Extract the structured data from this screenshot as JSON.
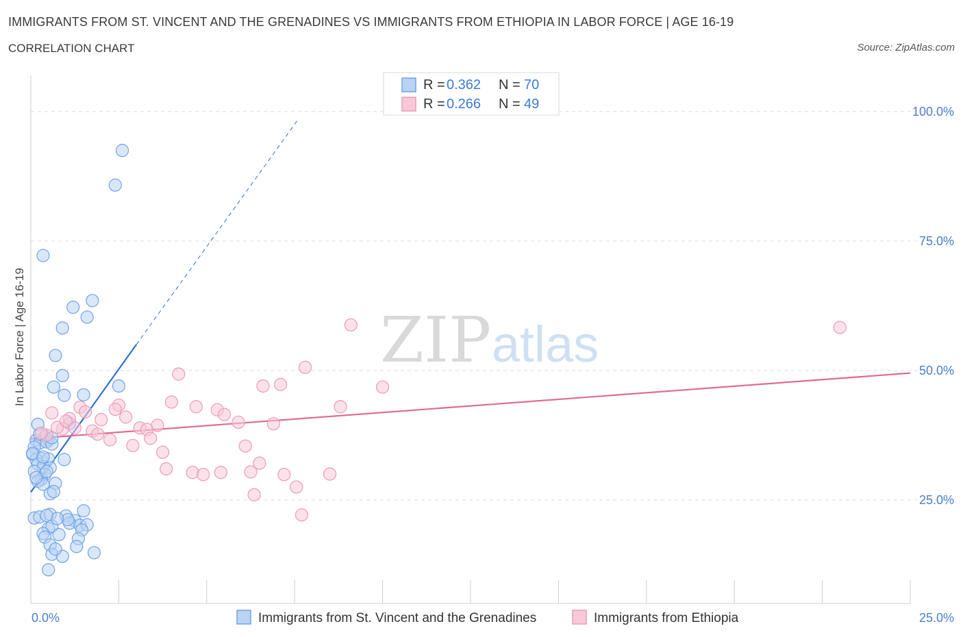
{
  "chart_data": {
    "type": "scatter",
    "title": "IMMIGRANTS FROM ST. VINCENT AND THE GRENADINES VS IMMIGRANTS FROM ETHIOPIA IN LABOR FORCE | AGE 16-19",
    "subtitle": "CORRELATION CHART",
    "source": "Source: ZipAtlas.com",
    "ylabel": "In Labor Force | Age 16-19",
    "xlabel": "",
    "xlim": [
      0,
      25
    ],
    "ylim": [
      5,
      107
    ],
    "x_tick_labels": [
      {
        "value": 0,
        "label": "0.0%"
      },
      {
        "value": 25,
        "label": "25.0%"
      }
    ],
    "y_tick_labels": [
      {
        "value": 25,
        "label": "25.0%"
      },
      {
        "value": 50,
        "label": "50.0%"
      },
      {
        "value": 75,
        "label": "75.0%"
      },
      {
        "value": 100,
        "label": "100.0%"
      }
    ],
    "grid": true,
    "legend": [
      {
        "series": "Immigrants from St. Vincent and the Grenadines",
        "r_label": "R = ",
        "r": "0.362",
        "n_label": "N = ",
        "n": "70"
      },
      {
        "series": "Immigrants from Ethiopia",
        "r_label": "R = ",
        "r": "0.266",
        "n_label": "N = ",
        "n": "49"
      }
    ],
    "series": [
      {
        "name": "Immigrants from St. Vincent and the Grenadines",
        "color": "#6fa3e8",
        "fill": "#b9d3f3",
        "trend_color": "#2f6fd0",
        "trend": {
          "x0": 0.0,
          "y0": 26.5,
          "x1": 3.0,
          "y1": 55.0,
          "dash_x1": 7.6,
          "dash_y1": 98.5
        },
        "points": [
          [
            2.6,
            92.5
          ],
          [
            2.4,
            85.8
          ],
          [
            0.35,
            72.2
          ],
          [
            1.2,
            62.2
          ],
          [
            1.75,
            63.5
          ],
          [
            1.6,
            60.3
          ],
          [
            0.9,
            58.2
          ],
          [
            0.7,
            52.9
          ],
          [
            0.9,
            49.0
          ],
          [
            2.5,
            47.0
          ],
          [
            0.65,
            46.8
          ],
          [
            0.95,
            45.2
          ],
          [
            1.5,
            45.3
          ],
          [
            0.2,
            39.6
          ],
          [
            1.1,
            39.8
          ],
          [
            0.4,
            37.2
          ],
          [
            0.5,
            36.6
          ],
          [
            0.15,
            36.5
          ],
          [
            0.25,
            36.0
          ],
          [
            0.45,
            36.2
          ],
          [
            0.6,
            35.8
          ],
          [
            0.1,
            35.2
          ],
          [
            0.3,
            33.0
          ],
          [
            0.05,
            33.8
          ],
          [
            0.15,
            32.8
          ],
          [
            0.5,
            32.9
          ],
          [
            0.95,
            32.8
          ],
          [
            0.2,
            31.9
          ],
          [
            0.35,
            31.4
          ],
          [
            0.1,
            30.5
          ],
          [
            0.55,
            31.2
          ],
          [
            0.4,
            29.9
          ],
          [
            0.3,
            29.0
          ],
          [
            0.2,
            28.6
          ],
          [
            0.7,
            28.2
          ],
          [
            0.35,
            28.0
          ],
          [
            0.55,
            26.2
          ],
          [
            0.65,
            26.6
          ],
          [
            0.1,
            21.5
          ],
          [
            0.25,
            21.7
          ],
          [
            0.55,
            22.2
          ],
          [
            1.5,
            22.9
          ],
          [
            1.0,
            21.9
          ],
          [
            1.25,
            21.0
          ],
          [
            1.1,
            20.5
          ],
          [
            1.4,
            20.1
          ],
          [
            1.6,
            20.2
          ],
          [
            0.5,
            19.5
          ],
          [
            0.6,
            19.9
          ],
          [
            1.45,
            19.2
          ],
          [
            0.35,
            18.5
          ],
          [
            0.8,
            18.3
          ],
          [
            0.4,
            17.8
          ],
          [
            1.35,
            17.5
          ],
          [
            0.55,
            16.3
          ],
          [
            1.3,
            16.0
          ],
          [
            0.6,
            14.5
          ],
          [
            0.9,
            14.1
          ],
          [
            1.8,
            14.8
          ],
          [
            0.5,
            11.5
          ],
          [
            0.05,
            34.0
          ],
          [
            0.25,
            37.7
          ],
          [
            0.6,
            37.0
          ],
          [
            0.35,
            33.3
          ],
          [
            0.15,
            29.3
          ],
          [
            0.45,
            30.5
          ],
          [
            1.05,
            21.2
          ],
          [
            0.75,
            21.4
          ],
          [
            0.45,
            22.0
          ],
          [
            0.7,
            15.5
          ]
        ]
      },
      {
        "name": "Immigrants from Ethiopia",
        "color": "#ec9ab6",
        "fill": "#f7c9d8",
        "trend_color": "#e06b93",
        "trend": {
          "x0": 0.0,
          "y0": 36.8,
          "x1": 25.0,
          "y1": 49.5
        },
        "points": [
          [
            23.0,
            58.3
          ],
          [
            9.1,
            58.8
          ],
          [
            7.8,
            50.6
          ],
          [
            4.2,
            49.3
          ],
          [
            7.1,
            47.3
          ],
          [
            6.6,
            47.0
          ],
          [
            10.0,
            46.8
          ],
          [
            4.0,
            43.9
          ],
          [
            8.8,
            43.0
          ],
          [
            2.5,
            43.3
          ],
          [
            4.7,
            43.0
          ],
          [
            5.3,
            42.4
          ],
          [
            1.4,
            42.9
          ],
          [
            2.4,
            42.5
          ],
          [
            1.55,
            42.0
          ],
          [
            0.6,
            41.8
          ],
          [
            5.5,
            41.5
          ],
          [
            2.7,
            41.0
          ],
          [
            1.1,
            40.7
          ],
          [
            2.0,
            40.5
          ],
          [
            5.9,
            40.0
          ],
          [
            6.9,
            39.7
          ],
          [
            3.6,
            39.4
          ],
          [
            3.1,
            38.9
          ],
          [
            1.25,
            38.9
          ],
          [
            0.9,
            38.7
          ],
          [
            0.75,
            39.0
          ],
          [
            3.3,
            38.6
          ],
          [
            1.75,
            38.3
          ],
          [
            1.9,
            37.7
          ],
          [
            0.45,
            37.5
          ],
          [
            3.4,
            36.9
          ],
          [
            2.25,
            36.6
          ],
          [
            2.9,
            35.5
          ],
          [
            6.1,
            35.4
          ],
          [
            3.75,
            34.2
          ],
          [
            6.5,
            32.1
          ],
          [
            3.85,
            31.0
          ],
          [
            4.6,
            30.3
          ],
          [
            5.4,
            30.3
          ],
          [
            6.25,
            30.4
          ],
          [
            8.5,
            30.0
          ],
          [
            7.2,
            29.9
          ],
          [
            4.9,
            29.9
          ],
          [
            7.55,
            27.5
          ],
          [
            6.35,
            26.0
          ],
          [
            7.7,
            22.1
          ],
          [
            0.3,
            37.9
          ],
          [
            1.0,
            40.2
          ]
        ]
      }
    ]
  }
}
